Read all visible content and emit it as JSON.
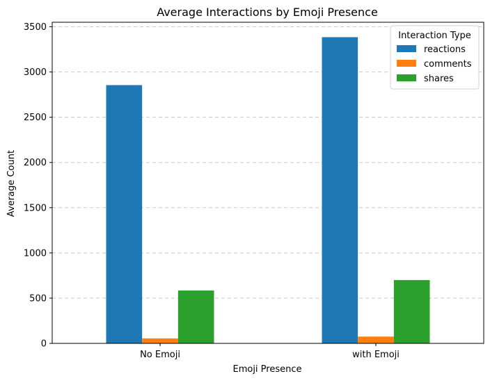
{
  "chart_data": {
    "type": "bar",
    "title": "Average Interactions by Emoji Presence",
    "xlabel": "Emoji Presence",
    "ylabel": "Average Count",
    "categories": [
      "No Emoji",
      "with Emoji"
    ],
    "series": [
      {
        "name": "reactions",
        "color": "#1f77b4",
        "values": [
          2855,
          3385
        ]
      },
      {
        "name": "comments",
        "color": "#ff7f0e",
        "values": [
          55,
          75
        ]
      },
      {
        "name": "shares",
        "color": "#2ca02c",
        "values": [
          585,
          700
        ]
      }
    ],
    "ylim": [
      0,
      3550
    ],
    "yticks": [
      0,
      500,
      1000,
      1500,
      2000,
      2500,
      3000,
      3500
    ],
    "grid": "y-dashed",
    "legend": {
      "title": "Interaction Type",
      "placement": "top-right"
    }
  }
}
